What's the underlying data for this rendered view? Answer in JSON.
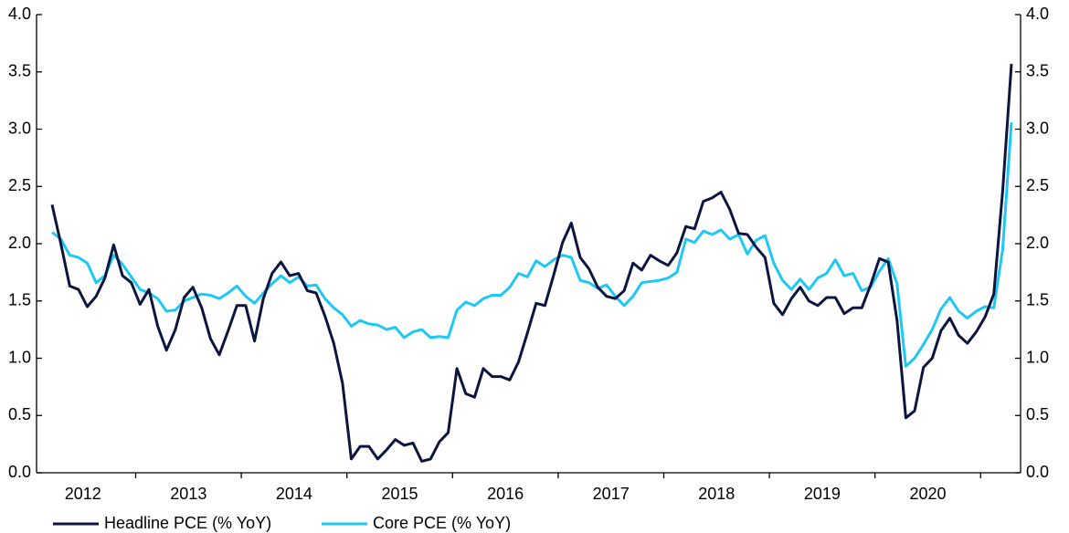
{
  "chart_data": {
    "type": "line",
    "categories": [
      null,
      null,
      null,
      null,
      "2012",
      null,
      null,
      null,
      null,
      null,
      null,
      null,
      null,
      null,
      null,
      null,
      "2013",
      null,
      null,
      null,
      null,
      null,
      null,
      null,
      null,
      null,
      null,
      null,
      "2014",
      null,
      null,
      null,
      null,
      null,
      null,
      null,
      null,
      null,
      null,
      null,
      "2015",
      null,
      null,
      null,
      null,
      null,
      null,
      null,
      null,
      null,
      null,
      null,
      "2016",
      null,
      null,
      null,
      null,
      null,
      null,
      null,
      null,
      null,
      null,
      null,
      "2017",
      null,
      null,
      null,
      null,
      null,
      null,
      null,
      null,
      null,
      null,
      null,
      "2018",
      null,
      null,
      null,
      null,
      null,
      null,
      null,
      null,
      null,
      null,
      null,
      "2019",
      null,
      null,
      null,
      null,
      null,
      null,
      null,
      null,
      null,
      null,
      null,
      "2020",
      null,
      null,
      null,
      null,
      null,
      null,
      null,
      null,
      null
    ],
    "series": [
      {
        "name": "Headline PCE (% YoY)",
        "color": "#0b1540",
        "values": [
          2.34,
          2.0,
          1.63,
          1.6,
          1.45,
          1.54,
          1.7,
          1.99,
          1.72,
          1.66,
          1.47,
          1.6,
          1.28,
          1.07,
          1.25,
          1.53,
          1.62,
          1.44,
          1.17,
          1.03,
          1.24,
          1.46,
          1.46,
          1.15,
          1.52,
          1.74,
          1.84,
          1.72,
          1.74,
          1.59,
          1.57,
          1.37,
          1.13,
          0.78,
          0.12,
          0.23,
          0.23,
          0.12,
          0.2,
          0.29,
          0.24,
          0.26,
          0.1,
          0.12,
          0.27,
          0.35,
          0.91,
          0.69,
          0.66,
          0.91,
          0.84,
          0.84,
          0.81,
          0.97,
          1.22,
          1.48,
          1.46,
          1.73,
          2.01,
          2.18,
          1.88,
          1.78,
          1.62,
          1.54,
          1.52,
          1.59,
          1.83,
          1.77,
          1.9,
          1.85,
          1.81,
          1.92,
          2.15,
          2.13,
          2.37,
          2.4,
          2.45,
          2.3,
          2.09,
          2.08,
          1.97,
          1.88,
          1.48,
          1.38,
          1.52,
          1.62,
          1.5,
          1.46,
          1.53,
          1.53,
          1.39,
          1.44,
          1.44,
          1.64,
          1.87,
          1.84,
          1.33,
          0.48,
          0.54,
          0.92,
          1.0,
          1.24,
          1.35,
          1.2,
          1.13,
          1.23,
          1.36,
          1.56,
          2.46,
          3.57
        ]
      },
      {
        "name": "Core PCE (% YoY)",
        "color": "#1ec8f4",
        "values": [
          2.1,
          2.04,
          1.9,
          1.88,
          1.83,
          1.66,
          1.72,
          1.9,
          1.82,
          1.71,
          1.6,
          1.57,
          1.52,
          1.41,
          1.42,
          1.5,
          1.53,
          1.56,
          1.55,
          1.52,
          1.57,
          1.63,
          1.54,
          1.48,
          1.57,
          1.65,
          1.72,
          1.66,
          1.71,
          1.63,
          1.64,
          1.52,
          1.44,
          1.38,
          1.28,
          1.33,
          1.3,
          1.29,
          1.25,
          1.27,
          1.18,
          1.23,
          1.25,
          1.18,
          1.19,
          1.18,
          1.42,
          1.49,
          1.46,
          1.52,
          1.55,
          1.55,
          1.62,
          1.74,
          1.71,
          1.85,
          1.8,
          1.86,
          1.9,
          1.88,
          1.68,
          1.66,
          1.61,
          1.64,
          1.54,
          1.46,
          1.54,
          1.66,
          1.67,
          1.68,
          1.7,
          1.75,
          2.04,
          2.01,
          2.11,
          2.08,
          2.12,
          2.04,
          2.08,
          1.91,
          2.03,
          2.07,
          1.83,
          1.68,
          1.6,
          1.69,
          1.6,
          1.7,
          1.74,
          1.86,
          1.72,
          1.74,
          1.59,
          1.62,
          1.76,
          1.87,
          1.65,
          0.93,
          1.0,
          1.12,
          1.25,
          1.43,
          1.53,
          1.41,
          1.35,
          1.41,
          1.45,
          1.44,
          1.95,
          3.06
        ]
      }
    ],
    "ylim": [
      0,
      4
    ],
    "yticks": [
      {
        "value": 0,
        "label": "0.0"
      },
      0.5,
      {
        "value": 1,
        "label": "1.0"
      },
      1.5,
      {
        "value": 2,
        "label": "2.0"
      },
      2.5,
      {
        "value": 3,
        "label": "3.0"
      },
      3.5,
      {
        "value": 4,
        "label": "4.0"
      }
    ],
    "y2lim": [
      0,
      4
    ],
    "y2ticks": [
      {
        "value": 0,
        "label": "0.0"
      },
      0.5,
      {
        "value": 1,
        "label": "1.0"
      },
      1.5,
      {
        "value": 2,
        "label": "2.0"
      },
      2.5,
      {
        "value": 3,
        "label": "3.0"
      },
      3.5,
      {
        "value": 4,
        "label": "4.0"
      }
    ],
    "legend": "bottom-left"
  }
}
